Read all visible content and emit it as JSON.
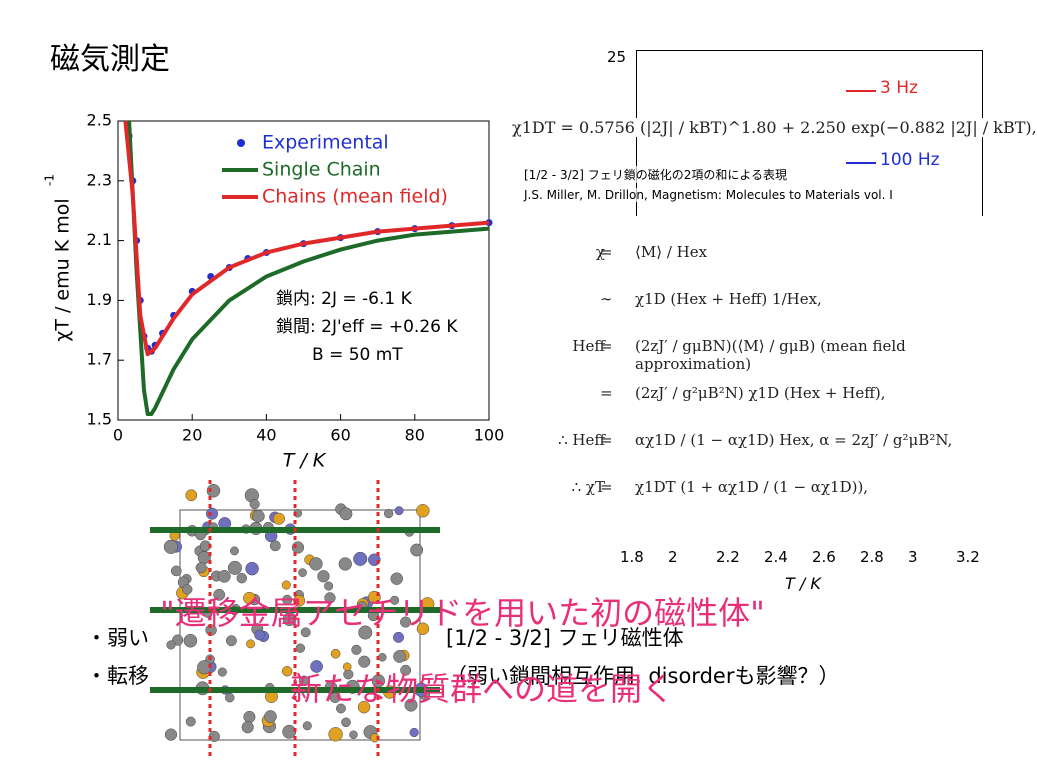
{
  "title": "磁気測定",
  "chart_data": {
    "type": "line",
    "xlabel": "T / K",
    "ylabel": "χT / emu K mol",
    "ylabel_sup": "-1",
    "xlim": [
      0,
      100
    ],
    "xticks": [
      0,
      20,
      40,
      60,
      80,
      100
    ],
    "ylim": [
      1.5,
      2.5
    ],
    "yticks": [
      1.5,
      1.7,
      1.9,
      2.1,
      2.3,
      2.5
    ],
    "legend": "top-right",
    "series": [
      {
        "name": "Experimental",
        "color": "#1f2fd0",
        "marker": "dot",
        "x": [
          3,
          4,
          5,
          6,
          7,
          8,
          9,
          10,
          12,
          15,
          20,
          25,
          30,
          35,
          40,
          50,
          60,
          70,
          80,
          90,
          100
        ],
        "values": [
          2.45,
          2.3,
          2.1,
          1.9,
          1.78,
          1.74,
          1.73,
          1.75,
          1.79,
          1.85,
          1.93,
          1.98,
          2.01,
          2.04,
          2.06,
          2.09,
          2.11,
          2.13,
          2.14,
          2.15,
          2.16
        ]
      },
      {
        "name": "Single Chain",
        "color": "#1e6a28",
        "marker": "line",
        "x": [
          3,
          5,
          7,
          8,
          9,
          10,
          15,
          20,
          30,
          40,
          50,
          60,
          70,
          80,
          90,
          100
        ],
        "values": [
          2.5,
          2.0,
          1.6,
          1.52,
          1.52,
          1.54,
          1.67,
          1.77,
          1.9,
          1.98,
          2.03,
          2.07,
          2.1,
          2.12,
          2.13,
          2.14
        ]
      },
      {
        "name": "Chains (mean field)",
        "color": "#e0282a",
        "marker": "line",
        "x": [
          2,
          4,
          6,
          8,
          10,
          15,
          20,
          30,
          40,
          50,
          60,
          70,
          80,
          90,
          100
        ],
        "values": [
          2.5,
          2.25,
          1.85,
          1.72,
          1.74,
          1.84,
          1.92,
          2.01,
          2.06,
          2.09,
          2.11,
          2.13,
          2.14,
          2.15,
          2.16
        ]
      }
    ],
    "annotations": [
      "鎖内: 2J = -6.1 K",
      "鎖間: 2J'eff = +0.26 K",
      "B = 50 mT"
    ]
  },
  "inset": {
    "y_top": "25",
    "legend": [
      "3 Hz",
      "100 Hz"
    ],
    "xticks": [
      "1.8",
      "2",
      "2.2",
      "2.4",
      "2.6",
      "2.8",
      "3",
      "3.2"
    ],
    "xlabel": "T / K"
  },
  "equation": {
    "head": "χ1DT = 0.5756 (|2J| / kBT)^1.80 + 2.250 exp(−0.882 |2J| / kBT),",
    "caption": [
      "[1/2 - 3/2] フェリ鎖の磁化の2項の和による表現",
      "J.S. Miller, M. Drillon, Magnetism: Molecules to Materials vol. I"
    ],
    "lines": [
      [
        "χ",
        "=",
        "⟨M⟩ / Hex"
      ],
      [
        "",
        "∼",
        "χ1D (Hex + Heff) 1/Hex,"
      ],
      [
        "Heff",
        "=",
        "(2zJ′ / gμBN)(⟨M⟩ / gμB)  (mean field approximation)"
      ],
      [
        "",
        "=",
        "(2zJ′ / g²μB²N) χ1D (Hex + Heff),"
      ],
      [
        "∴ Heff",
        "=",
        "αχ1D / (1 − αχ1D) Hex,  α = 2zJ′ / g²μB²N,"
      ],
      [
        "∴ χT",
        "=",
        "χ1DT (1 + αχ1D / (1 − αχ1D)),"
      ]
    ]
  },
  "bullets": [
    "・弱い",
    "[1/2 - 3/2] フェリ磁性体",
    "・転移",
    "（弱い鎖間相互作用, disorderも影響？）"
  ],
  "overlays": [
    "\"遷移金属アセチリドを用いた初の磁性体\"",
    "新たな物質群への道を開く"
  ]
}
